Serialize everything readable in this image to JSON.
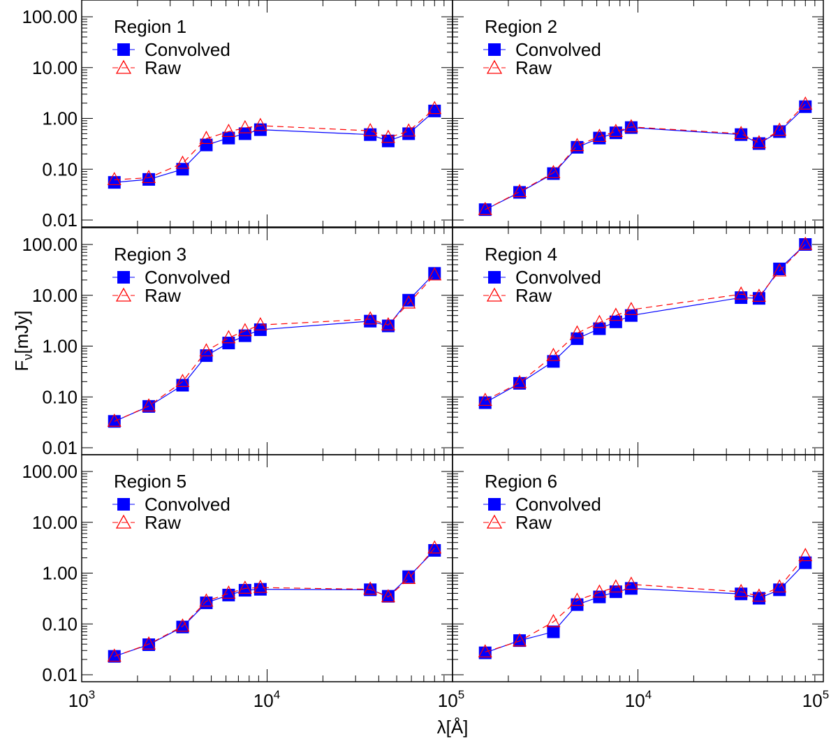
{
  "chart_data": {
    "type": "line",
    "xscale": "log",
    "yscale": "log",
    "xlim": [
      1000,
      100000
    ],
    "ylim": [
      0.01,
      100
    ],
    "xlabel": "λ[Å]",
    "ylabel_main": "F",
    "ylabel_sub": "ν",
    "ylabel_unit": "[mJy]",
    "y_tick_labels": [
      "100.00",
      "10.00",
      "1.00",
      "0.10",
      "0.01"
    ],
    "x_tick_labels": [
      {
        "base": "10",
        "exp": "3"
      },
      {
        "base": "10",
        "exp": "4"
      },
      {
        "base": "10",
        "exp": "5"
      }
    ],
    "legend": {
      "convolved": "Convolved",
      "raw": "Raw"
    },
    "colors": {
      "convolved": "#0000ff",
      "raw": "#ff0000"
    },
    "wavelengths": [
      1500,
      2300,
      3500,
      4700,
      6200,
      7600,
      9200,
      36000,
      45000,
      58000,
      80000
    ],
    "panels": [
      {
        "title": "Region 1",
        "convolved": [
          0.055,
          0.063,
          0.1,
          0.3,
          0.41,
          0.5,
          0.6,
          0.48,
          0.36,
          0.5,
          1.4
        ],
        "raw": [
          0.062,
          0.068,
          0.13,
          0.4,
          0.55,
          0.65,
          0.72,
          0.57,
          0.42,
          0.56,
          1.55
        ]
      },
      {
        "title": "Region 2",
        "convolved": [
          0.016,
          0.035,
          0.082,
          0.27,
          0.41,
          0.52,
          0.66,
          0.48,
          0.32,
          0.55,
          1.7
        ],
        "raw": [
          0.016,
          0.036,
          0.085,
          0.29,
          0.44,
          0.55,
          0.68,
          0.5,
          0.33,
          0.58,
          1.9
        ]
      },
      {
        "title": "Region 3",
        "convolved": [
          0.033,
          0.065,
          0.17,
          0.65,
          1.15,
          1.6,
          2.1,
          3.1,
          2.5,
          8.0,
          27.0
        ],
        "raw": [
          0.033,
          0.066,
          0.2,
          0.8,
          1.45,
          2.0,
          2.6,
          3.4,
          2.6,
          7.0,
          25.0
        ]
      },
      {
        "title": "Region 4",
        "convolved": [
          0.077,
          0.185,
          0.5,
          1.4,
          2.2,
          3.0,
          4.0,
          9.0,
          8.7,
          33.0,
          120.0
        ],
        "raw": [
          0.085,
          0.19,
          0.65,
          1.8,
          2.9,
          4.0,
          5.2,
          10.5,
          9.5,
          30.0,
          115.0
        ]
      },
      {
        "title": "Region 5",
        "convolved": [
          0.023,
          0.039,
          0.087,
          0.26,
          0.37,
          0.46,
          0.48,
          0.47,
          0.35,
          0.85,
          2.8
        ],
        "raw": [
          0.023,
          0.04,
          0.09,
          0.28,
          0.4,
          0.5,
          0.52,
          0.48,
          0.34,
          0.78,
          3.1
        ]
      },
      {
        "title": "Region 6",
        "convolved": [
          0.027,
          0.047,
          0.07,
          0.24,
          0.34,
          0.43,
          0.5,
          0.39,
          0.32,
          0.47,
          1.6
        ],
        "raw": [
          0.028,
          0.046,
          0.11,
          0.29,
          0.42,
          0.53,
          0.6,
          0.43,
          0.35,
          0.53,
          2.2
        ]
      }
    ]
  }
}
